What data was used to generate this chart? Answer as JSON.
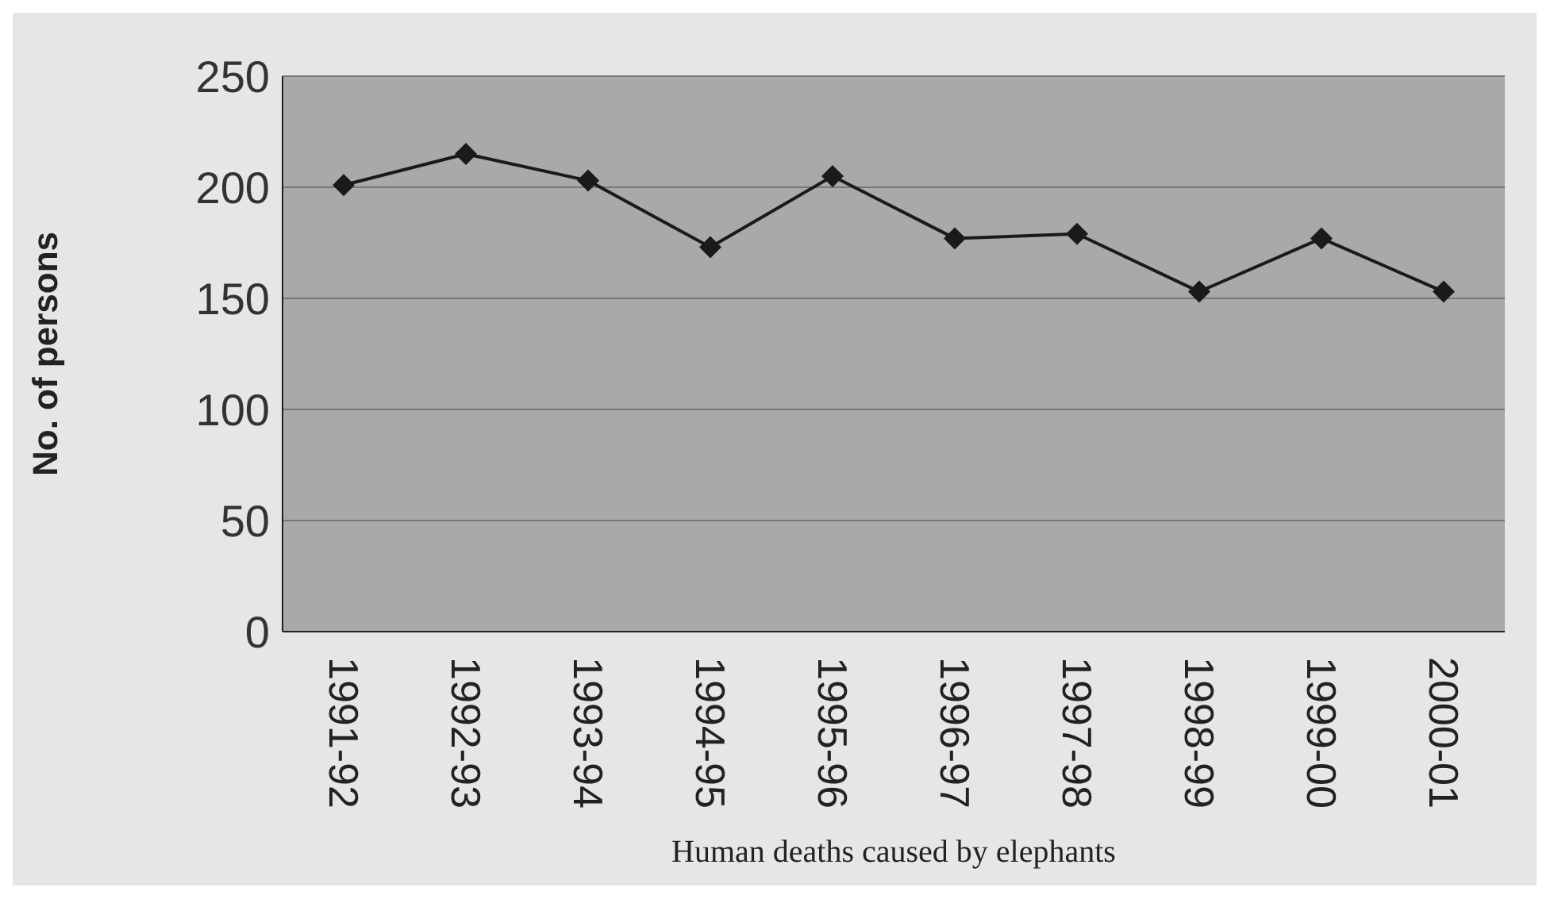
{
  "chart_data": {
    "type": "line",
    "xlabel": "Human deaths caused by elephants",
    "ylabel": "No. of persons",
    "categories": [
      "1991-92",
      "1992-93",
      "1993-94",
      "1994-95",
      "1995-96",
      "1996-97",
      "1997-98",
      "1998-99",
      "1999-00",
      "2000-01"
    ],
    "series": [
      {
        "color": "#1a1a1a",
        "values": [
          201,
          215,
          203,
          173,
          205,
          177,
          179,
          153,
          177,
          153
        ]
      }
    ],
    "ylim": [
      0,
      250
    ],
    "yticks": [
      0,
      50,
      100,
      150,
      200,
      250
    ],
    "grid": "y",
    "marker": "diamond",
    "line_style": "solid",
    "legend": false
  }
}
